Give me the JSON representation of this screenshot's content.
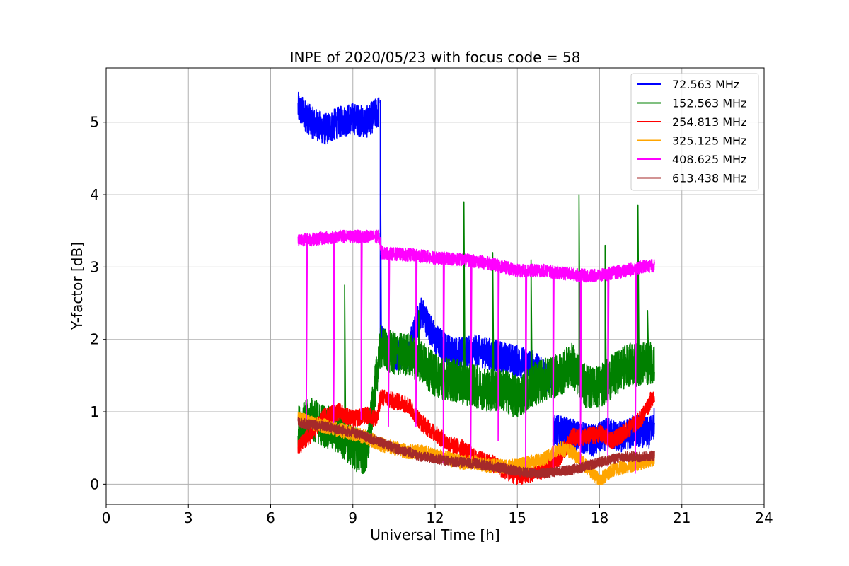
{
  "chart_data": {
    "type": "line",
    "title": "INPE of 2020/05/23 with focus code = 58",
    "xlabel": "Universal Time [h]",
    "ylabel": "Y-factor [dB]",
    "xlim": [
      0,
      24
    ],
    "ylim": [
      -0.28,
      5.75
    ],
    "xticks": [
      0,
      3,
      6,
      9,
      12,
      15,
      18,
      21,
      24
    ],
    "yticks": [
      0,
      1,
      2,
      3,
      4,
      5
    ],
    "grid": true,
    "legend_position": "top-right",
    "series": [
      {
        "name": " 72.563 MHz",
        "color": "#0000ff",
        "noise": 0.22,
        "spikes": [
          [
            10.0,
            5.3
          ],
          [
            10.0,
            3.8
          ]
        ],
        "segments": [
          {
            "x": [
              7.0,
              7.5,
              8.0,
              8.5,
              9.0,
              9.5,
              9.95
            ],
            "y": [
              5.2,
              5.0,
              4.9,
              5.0,
              5.05,
              5.0,
              5.15
            ]
          },
          {
            "x": [
              10.0,
              10.5,
              11.0,
              11.5,
              12.0,
              12.5,
              13.0,
              13.5,
              14.0,
              14.5,
              15.0,
              15.5,
              16.0,
              16.2
            ],
            "y": [
              2.0,
              1.8,
              1.8,
              2.4,
              2.0,
              1.85,
              1.8,
              1.85,
              1.8,
              1.75,
              1.7,
              1.65,
              1.5,
              1.5
            ]
          },
          {
            "x": [
              16.3,
              16.8,
              17.3,
              17.8,
              18.3,
              18.8,
              19.3,
              19.8,
              20.0
            ],
            "y": [
              0.75,
              0.7,
              0.65,
              0.6,
              0.7,
              0.65,
              0.75,
              0.7,
              0.85
            ]
          }
        ]
      },
      {
        "name": "152.563 MHz",
        "color": "#008000",
        "noise": 0.3,
        "spikes": [
          [
            8.7,
            2.75
          ],
          [
            11.4,
            2.4
          ],
          [
            13.05,
            3.9
          ],
          [
            14.1,
            3.2
          ],
          [
            15.5,
            3.1
          ],
          [
            17.25,
            4.0
          ],
          [
            18.2,
            3.3
          ],
          [
            19.4,
            3.85
          ],
          [
            19.75,
            2.4
          ]
        ],
        "segments": [
          {
            "x": [
              7.0,
              7.5,
              8.0,
              8.5,
              9.0,
              9.5,
              10.0,
              10.5,
              11.0,
              11.5,
              12.0,
              12.5,
              13.0,
              13.5,
              14.0,
              14.5,
              15.0,
              15.5,
              16.0,
              16.5,
              17.0,
              17.5,
              18.0,
              18.5,
              19.0,
              19.5,
              20.0
            ],
            "y": [
              0.8,
              0.9,
              0.8,
              0.7,
              0.5,
              0.4,
              1.9,
              1.8,
              1.8,
              1.7,
              1.5,
              1.45,
              1.4,
              1.35,
              1.3,
              1.3,
              1.2,
              1.35,
              1.45,
              1.5,
              1.65,
              1.35,
              1.35,
              1.5,
              1.65,
              1.65,
              1.7
            ]
          }
        ]
      },
      {
        "name": "254.813 MHz",
        "color": "#ff0000",
        "noise": 0.12,
        "spikes": [],
        "segments": [
          {
            "x": [
              7.0,
              7.5,
              8.0,
              8.5,
              9.0,
              9.5,
              9.9,
              10.0,
              10.5,
              11.0,
              11.5,
              12.0,
              12.5,
              13.0,
              13.5,
              14.0,
              14.5,
              15.0,
              15.5,
              16.0,
              16.5,
              17.0,
              17.5,
              18.0,
              18.5,
              19.0,
              19.5,
              20.0
            ],
            "y": [
              0.5,
              0.7,
              0.95,
              1.0,
              0.9,
              0.95,
              0.9,
              1.2,
              1.15,
              1.1,
              0.85,
              0.7,
              0.55,
              0.5,
              0.35,
              0.3,
              0.2,
              0.1,
              0.15,
              0.2,
              0.35,
              0.65,
              0.65,
              0.7,
              0.6,
              0.75,
              0.9,
              1.25
            ]
          }
        ]
      },
      {
        "name": "325.125 MHz",
        "color": "#ffa500",
        "noise": 0.1,
        "spikes": [],
        "segments": [
          {
            "x": [
              7.0,
              7.5,
              8.0,
              8.5,
              9.0,
              9.5,
              10.0,
              10.5,
              11.0,
              11.5,
              12.0,
              12.5,
              13.0,
              13.5,
              14.0,
              14.5,
              15.0,
              15.5,
              16.0,
              16.5,
              17.0,
              17.5,
              18.0,
              18.5,
              19.0,
              19.5,
              20.0
            ],
            "y": [
              0.9,
              0.85,
              0.8,
              0.75,
              0.7,
              0.65,
              0.55,
              0.5,
              0.45,
              0.45,
              0.4,
              0.35,
              0.3,
              0.3,
              0.25,
              0.25,
              0.25,
              0.3,
              0.35,
              0.5,
              0.45,
              0.25,
              0.05,
              0.2,
              0.25,
              0.3,
              0.35
            ]
          }
        ]
      },
      {
        "name": "408.625 MHz",
        "color": "#ff00ff",
        "noise": 0.09,
        "spikes": [
          [
            7.3,
            0.8
          ],
          [
            8.3,
            0.85
          ],
          [
            9.3,
            0.9
          ],
          [
            10.3,
            0.8
          ],
          [
            11.3,
            0.8
          ],
          [
            12.3,
            0.3
          ],
          [
            13.3,
            0.3
          ],
          [
            14.3,
            0.6
          ],
          [
            15.3,
            0.2
          ],
          [
            16.3,
            0.2
          ],
          [
            17.3,
            0.2
          ],
          [
            18.3,
            0.25
          ],
          [
            19.3,
            0.15
          ]
        ],
        "segments": [
          {
            "x": [
              7.0,
              7.5,
              8.0,
              8.5,
              9.0,
              9.5,
              9.95,
              10.05,
              10.5,
              11.0,
              11.5,
              12.0,
              12.5,
              13.0,
              13.5,
              14.0,
              14.5,
              15.0,
              15.5,
              16.0,
              16.5,
              17.0,
              17.5,
              18.0,
              18.5,
              19.0,
              19.5,
              20.0
            ],
            "y": [
              3.38,
              3.38,
              3.4,
              3.42,
              3.42,
              3.42,
              3.42,
              3.2,
              3.18,
              3.17,
              3.15,
              3.12,
              3.12,
              3.1,
              3.08,
              3.05,
              3.0,
              2.95,
              2.95,
              2.95,
              2.92,
              2.9,
              2.88,
              2.88,
              2.92,
              2.95,
              3.0,
              3.02
            ]
          }
        ]
      },
      {
        "name": "613.438 MHz",
        "color": "#a52a2a",
        "noise": 0.07,
        "spikes": [],
        "segments": [
          {
            "x": [
              7.0,
              7.5,
              8.0,
              8.5,
              9.0,
              9.5,
              10.0,
              10.5,
              11.0,
              11.5,
              12.0,
              12.5,
              13.0,
              13.5,
              14.0,
              14.5,
              15.0,
              15.5,
              16.0,
              16.5,
              17.0,
              17.5,
              18.0,
              18.5,
              19.0,
              19.5,
              20.0
            ],
            "y": [
              0.85,
              0.82,
              0.8,
              0.75,
              0.72,
              0.65,
              0.58,
              0.5,
              0.45,
              0.38,
              0.35,
              0.32,
              0.3,
              0.28,
              0.25,
              0.22,
              0.18,
              0.15,
              0.15,
              0.18,
              0.2,
              0.25,
              0.3,
              0.35,
              0.38,
              0.38,
              0.4
            ]
          }
        ]
      }
    ]
  }
}
